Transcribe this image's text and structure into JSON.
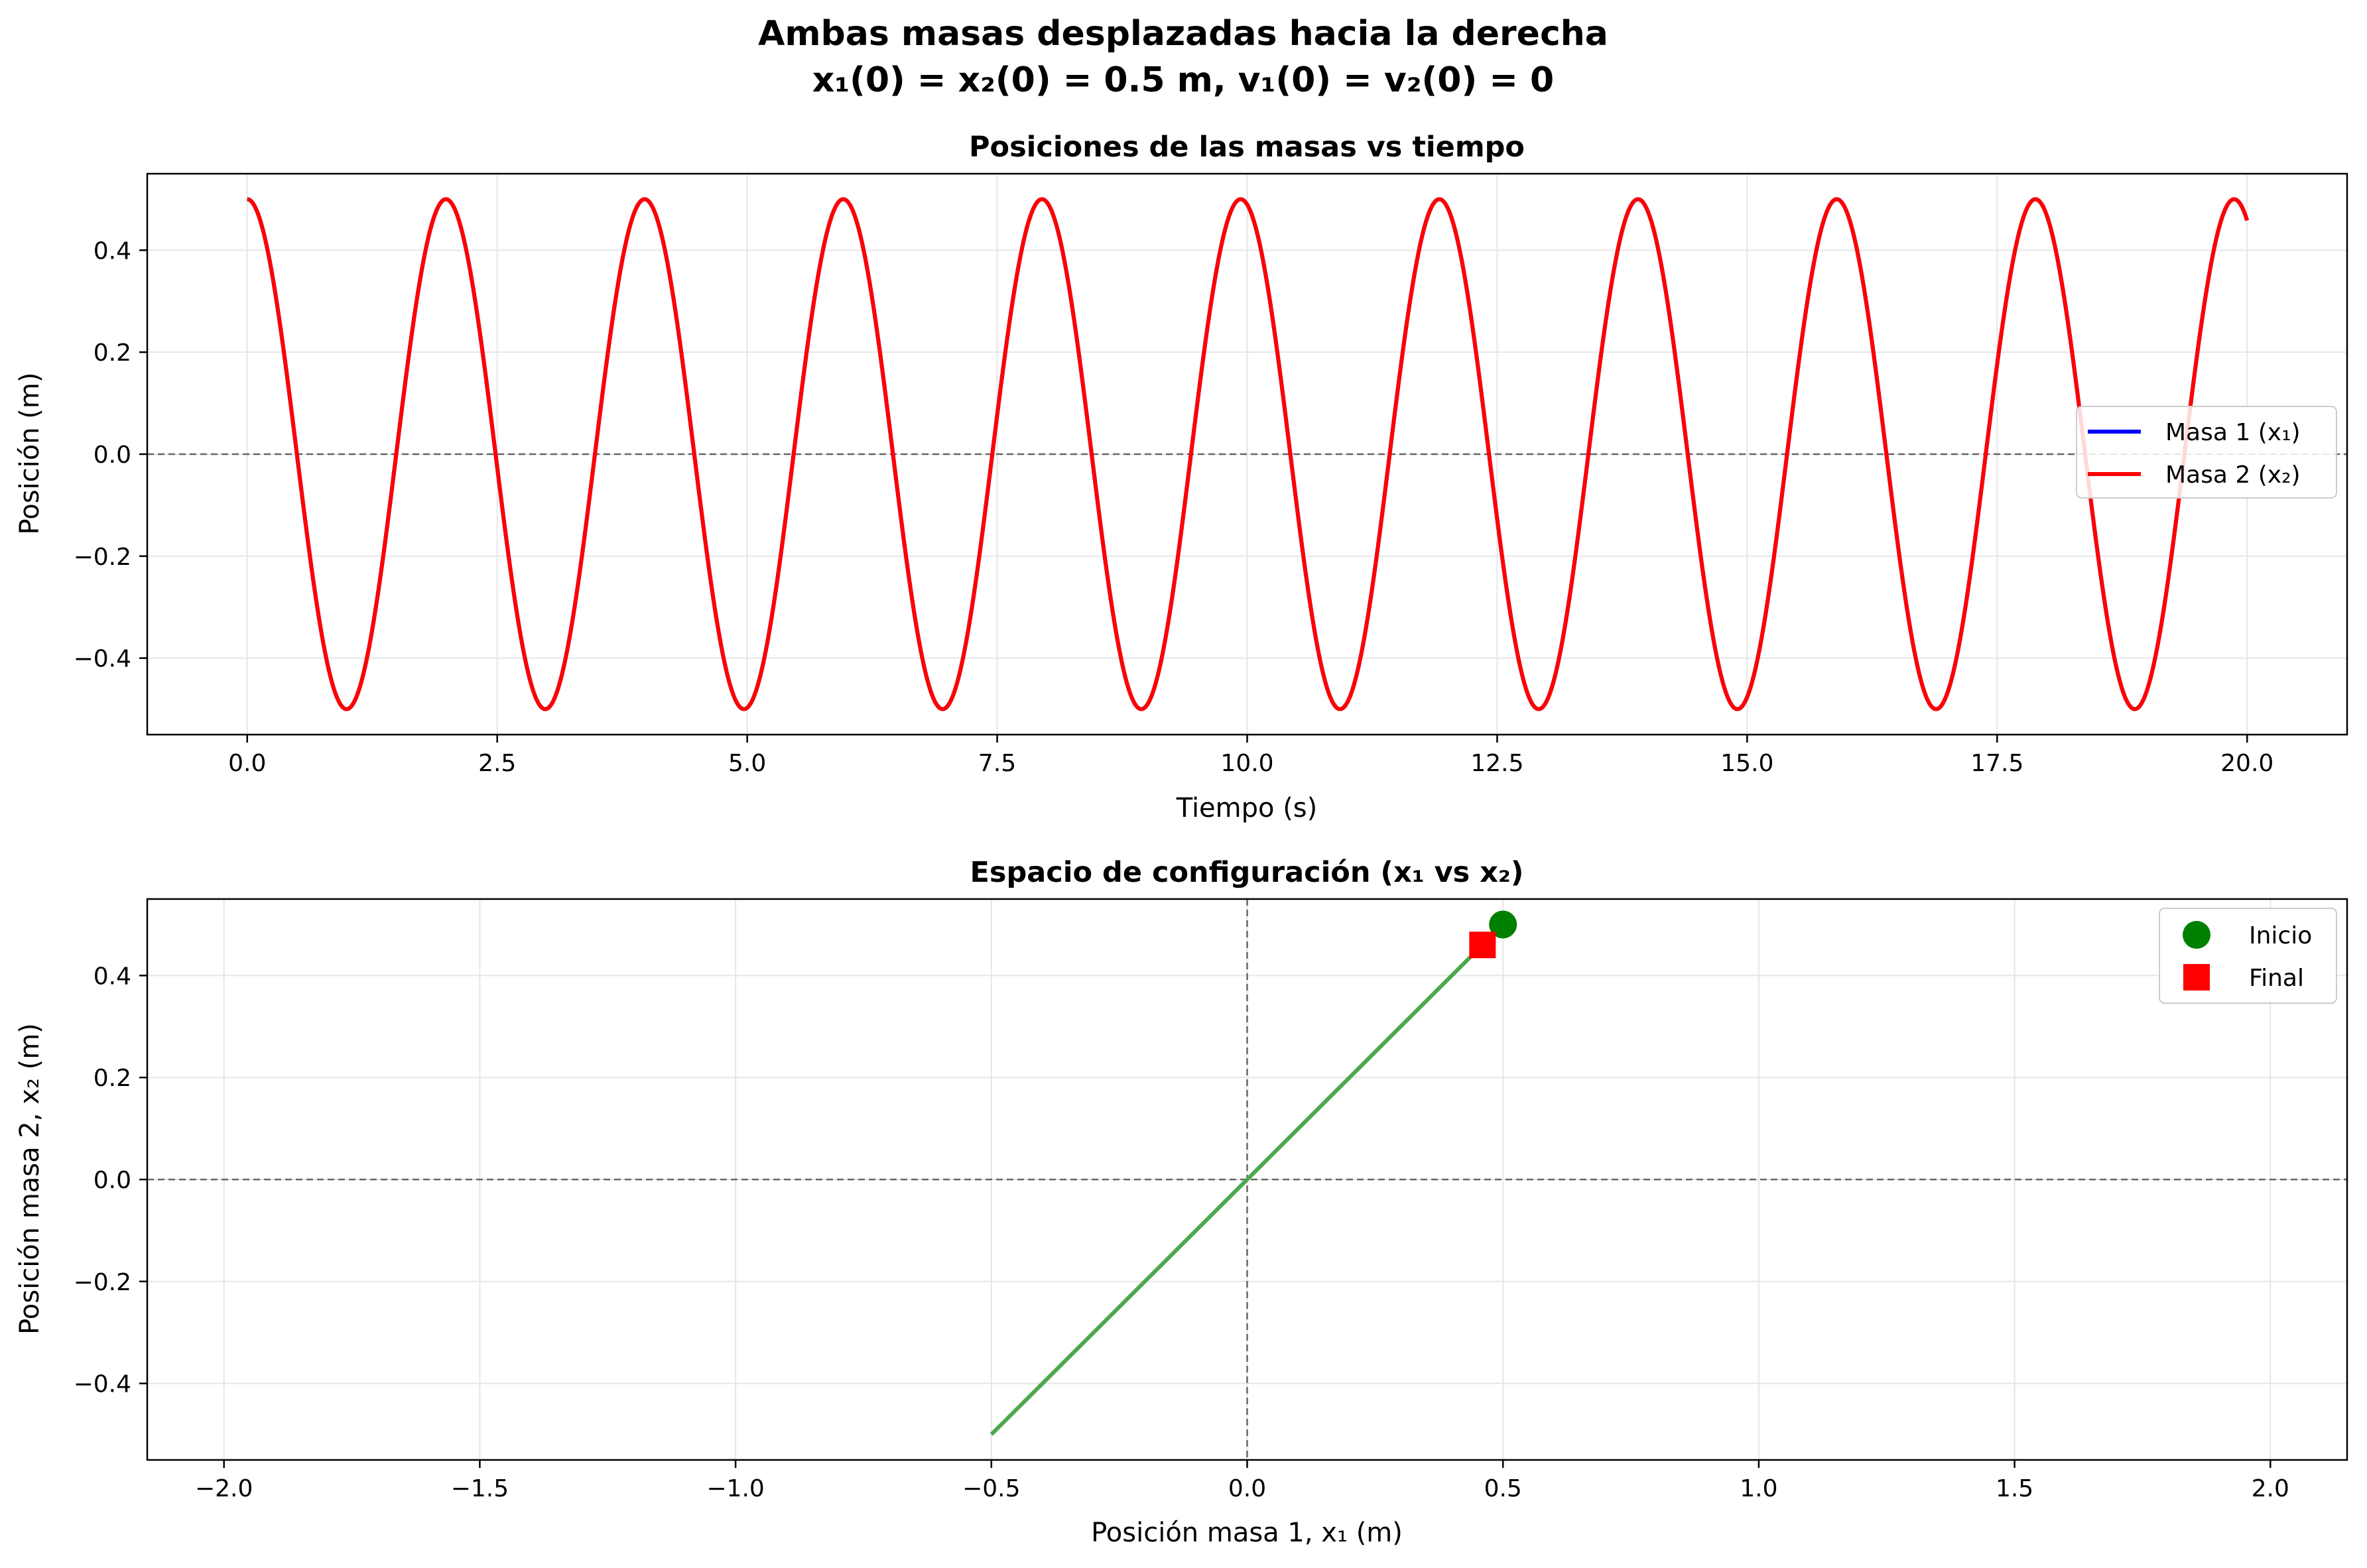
{
  "suptitle": {
    "line1": "Ambas masas desplazadas hacia la derecha",
    "line2": "x₁(0) = x₂(0) = 0.5 m, v₁(0) = v₂(0) = 0"
  },
  "colors": {
    "mass1": "#0000ff",
    "mass2": "#ff0000",
    "trajectory": "#4da84d",
    "start_marker": "#008000",
    "end_marker": "#ff0000",
    "zero_line": "#666666",
    "grid": "#e6e6e6"
  },
  "chart_data": [
    {
      "type": "line",
      "title": "Posiciones de las masas vs tiempo",
      "xlabel": "Tiempo (s)",
      "ylabel": "Posición (m)",
      "xlim": [
        -1.0,
        21.0
      ],
      "ylim": [
        -0.55,
        0.55
      ],
      "xticks": [
        0.0,
        2.5,
        5.0,
        7.5,
        10.0,
        12.5,
        15.0,
        17.5,
        20.0
      ],
      "xtick_labels": [
        "0.0",
        "2.5",
        "5.0",
        "7.5",
        "10.0",
        "12.5",
        "15.0",
        "17.5",
        "20.0"
      ],
      "yticks": [
        -0.4,
        -0.2,
        0.0,
        0.2,
        0.4
      ],
      "ytick_labels": [
        "−0.4",
        "−0.2",
        "0.0",
        "0.2",
        "0.4"
      ],
      "grid": true,
      "zero_line": true,
      "legend_position": "center-right",
      "series": [
        {
          "name": "Masa 1 (x₁)",
          "color": "#0000ff",
          "function": "x(t) = 0.5 cos(3.162 t)",
          "t_range": [
            0,
            20
          ],
          "amplitude": 0.5,
          "period": 1.987
        },
        {
          "name": "Masa 2 (x₂)",
          "color": "#ff0000",
          "function": "x(t) = 0.5 cos(3.162 t)",
          "t_range": [
            0,
            20
          ],
          "amplitude": 0.5,
          "period": 1.987
        }
      ]
    },
    {
      "type": "line",
      "title": "Espacio de configuración (x₁ vs x₂)",
      "xlabel": "Posición masa 1, x₁ (m)",
      "ylabel": "Posición masa 2, x₂ (m)",
      "xlim": [
        -2.15,
        2.15
      ],
      "ylim": [
        -0.55,
        0.55
      ],
      "xticks": [
        -2.0,
        -1.5,
        -1.0,
        -0.5,
        0.0,
        0.5,
        1.0,
        1.5,
        2.0
      ],
      "xtick_labels": [
        "−2.0",
        "−1.5",
        "−1.0",
        "−0.5",
        "0.0",
        "0.5",
        "1.0",
        "1.5",
        "2.0"
      ],
      "yticks": [
        -0.4,
        -0.2,
        0.0,
        0.2,
        0.4
      ],
      "ytick_labels": [
        "−0.4",
        "−0.2",
        "0.0",
        "0.2",
        "0.4"
      ],
      "grid": true,
      "zero_lines": true,
      "legend_position": "top-right",
      "trajectory": {
        "x": [
          -0.5,
          0.5
        ],
        "y": [
          -0.5,
          0.5
        ]
      },
      "start": {
        "name": "Inicio",
        "x": 0.5,
        "y": 0.5
      },
      "end": {
        "name": "Final",
        "x": 0.46,
        "y": 0.46
      }
    }
  ]
}
